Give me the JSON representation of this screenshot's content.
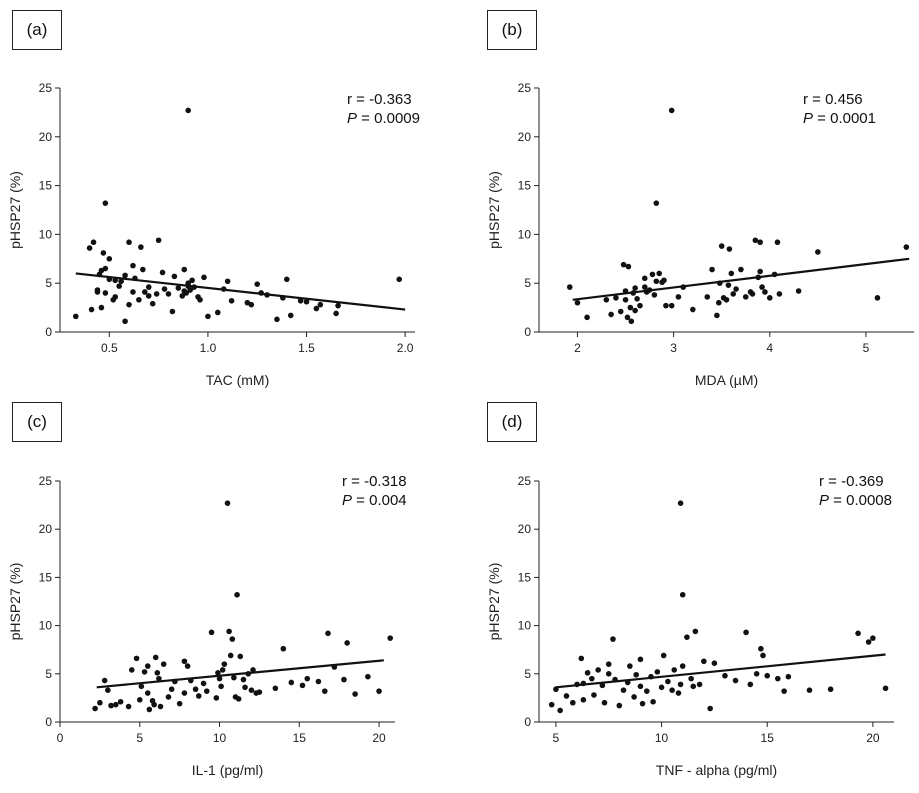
{
  "chart_data": [
    {
      "type": "scatter",
      "panel": "(a)",
      "xlabel": "TAC (mM)",
      "ylabel": "pHSP27 (%)",
      "xlim": [
        0.25,
        2.05
      ],
      "ylim": [
        0,
        25
      ],
      "xticks": [
        0.5,
        1.0,
        1.5,
        2.0
      ],
      "xtick_labels": [
        "0.5",
        "1.0",
        "1.5",
        "2.0"
      ],
      "yticks": [
        0,
        5,
        10,
        15,
        20,
        25
      ],
      "r": "r = -0.363",
      "p_label": "P",
      "p_value": " = 0.0009",
      "fit": {
        "x1": 0.33,
        "y1": 6.0,
        "x2": 2.0,
        "y2": 2.3
      },
      "x": [
        0.33,
        0.4,
        0.41,
        0.42,
        0.44,
        0.45,
        0.46,
        0.46,
        0.47,
        0.48,
        0.48,
        0.5,
        0.5,
        0.52,
        0.53,
        0.55,
        0.56,
        0.58,
        0.6,
        0.62,
        0.62,
        0.63,
        0.65,
        0.66,
        0.67,
        0.68,
        0.7,
        0.72,
        0.74,
        0.75,
        0.77,
        0.78,
        0.8,
        0.82,
        0.83,
        0.85,
        0.87,
        0.88,
        0.88,
        0.89,
        0.9,
        0.9,
        0.91,
        0.92,
        0.93,
        0.95,
        0.96,
        0.98,
        1.0,
        1.05,
        1.08,
        1.1,
        1.12,
        1.2,
        1.22,
        1.25,
        1.27,
        1.3,
        1.35,
        1.38,
        1.4,
        1.42,
        1.47,
        1.5,
        1.55,
        1.57,
        1.65,
        1.66,
        1.97,
        0.9,
        0.48,
        0.6,
        0.7,
        0.58,
        0.44,
        0.53
      ],
      "y": [
        1.6,
        8.6,
        2.3,
        9.2,
        4.1,
        5.9,
        6.3,
        2.5,
        8.1,
        13.2,
        4.0,
        7.5,
        5.4,
        3.3,
        3.6,
        4.7,
        5.2,
        1.1,
        2.8,
        6.8,
        4.1,
        5.5,
        3.3,
        8.7,
        6.4,
        4.1,
        3.7,
        2.9,
        3.9,
        9.4,
        6.1,
        4.4,
        3.9,
        2.1,
        5.7,
        4.5,
        3.7,
        6.4,
        4.2,
        4.0,
        22.7,
        5.0,
        4.3,
        5.3,
        4.6,
        3.6,
        3.3,
        5.6,
        1.6,
        2.0,
        4.4,
        5.2,
        3.2,
        3.0,
        2.8,
        4.9,
        4.0,
        3.8,
        1.3,
        3.5,
        5.4,
        1.7,
        3.2,
        3.1,
        2.4,
        2.8,
        1.9,
        2.7,
        5.4,
        4.7,
        6.5,
        9.2,
        4.6,
        5.8,
        4.3,
        5.3
      ]
    },
    {
      "type": "scatter",
      "panel": "(b)",
      "xlabel": "MDA (µM)",
      "ylabel": "pHSP27 (%)",
      "xlim": [
        1.6,
        5.5
      ],
      "ylim": [
        0,
        25
      ],
      "xticks": [
        2,
        3,
        4,
        5
      ],
      "xtick_labels": [
        "2",
        "3",
        "4",
        "5"
      ],
      "yticks": [
        0,
        5,
        10,
        15,
        20,
        25
      ],
      "r": "r = 0.456",
      "p_label": "P",
      "p_value": " = 0.0001",
      "fit": {
        "x1": 1.95,
        "y1": 3.3,
        "x2": 5.45,
        "y2": 7.5
      },
      "x": [
        1.92,
        2.0,
        2.1,
        2.3,
        2.35,
        2.4,
        2.45,
        2.48,
        2.5,
        2.52,
        2.53,
        2.55,
        2.56,
        2.58,
        2.6,
        2.62,
        2.65,
        2.7,
        2.72,
        2.75,
        2.78,
        2.8,
        2.82,
        2.85,
        2.88,
        2.9,
        2.92,
        2.98,
        3.05,
        3.1,
        3.2,
        3.35,
        3.4,
        3.45,
        3.47,
        3.5,
        3.52,
        3.55,
        3.57,
        3.6,
        3.62,
        3.65,
        3.7,
        3.75,
        3.8,
        3.82,
        3.85,
        3.88,
        3.9,
        3.92,
        3.95,
        4.0,
        4.05,
        4.1,
        4.3,
        4.5,
        5.12,
        5.42,
        2.98,
        2.82,
        2.5,
        2.6,
        2.7,
        3.48,
        3.58,
        3.9,
        4.08
      ],
      "y": [
        4.6,
        3.0,
        1.5,
        3.3,
        1.8,
        3.5,
        2.1,
        6.9,
        4.2,
        1.5,
        6.7,
        2.5,
        1.1,
        4.0,
        2.2,
        3.4,
        2.7,
        4.6,
        4.1,
        4.3,
        5.9,
        3.8,
        13.2,
        6.0,
        5.1,
        5.3,
        2.7,
        22.7,
        3.6,
        4.6,
        2.3,
        3.6,
        6.4,
        1.7,
        3.0,
        8.8,
        3.5,
        3.3,
        4.8,
        6.0,
        3.9,
        4.4,
        6.4,
        3.6,
        4.1,
        3.9,
        9.4,
        5.6,
        9.2,
        4.6,
        4.1,
        3.5,
        5.9,
        3.9,
        4.2,
        8.2,
        3.5,
        8.7,
        2.7,
        5.2,
        3.3,
        4.5,
        5.5,
        5.0,
        8.5,
        6.2,
        9.2
      ]
    },
    {
      "type": "scatter",
      "panel": "(c)",
      "xlabel": "IL-1 (pg/ml)",
      "ylabel": "pHSP27 (%)",
      "xlim": [
        0,
        21
      ],
      "ylim": [
        0,
        25
      ],
      "xticks": [
        0,
        5,
        10,
        15,
        20
      ],
      "xtick_labels": [
        "0",
        "5",
        "10",
        "15",
        "20"
      ],
      "yticks": [
        0,
        5,
        10,
        15,
        20,
        25
      ],
      "r": "r = -0.318",
      "p_label": "P",
      "p_value": " = 0.004",
      "fit": {
        "x1": 2.3,
        "y1": 3.6,
        "x2": 20.3,
        "y2": 6.4
      },
      "x": [
        2.2,
        2.5,
        2.8,
        3.0,
        3.2,
        3.5,
        3.8,
        4.3,
        4.5,
        4.8,
        5.0,
        5.1,
        5.3,
        5.5,
        5.6,
        5.8,
        5.9,
        6.0,
        6.1,
        6.2,
        6.3,
        6.5,
        6.8,
        7.0,
        7.2,
        7.5,
        7.8,
        8.0,
        8.2,
        8.5,
        8.7,
        9.0,
        9.2,
        9.5,
        9.8,
        10.0,
        10.1,
        10.2,
        10.5,
        10.6,
        10.8,
        10.9,
        11.0,
        11.1,
        11.2,
        11.3,
        11.5,
        11.6,
        11.8,
        12.0,
        12.1,
        12.3,
        12.5,
        13.5,
        14.0,
        14.5,
        15.2,
        15.5,
        16.2,
        16.6,
        16.8,
        17.2,
        17.8,
        18.0,
        18.5,
        19.3,
        20.0,
        20.7,
        10.3,
        10.7,
        5.5,
        7.8,
        9.9
      ],
      "y": [
        1.4,
        2.0,
        4.3,
        3.3,
        1.7,
        1.8,
        2.1,
        1.6,
        5.4,
        6.6,
        2.3,
        3.7,
        5.2,
        3.0,
        1.3,
        2.2,
        1.8,
        6.7,
        5.1,
        4.5,
        1.6,
        6.0,
        2.6,
        3.4,
        4.2,
        1.9,
        3.0,
        5.8,
        4.3,
        3.4,
        2.7,
        4.0,
        3.2,
        9.3,
        2.5,
        4.5,
        3.7,
        5.4,
        22.7,
        9.4,
        8.6,
        4.6,
        2.6,
        13.2,
        2.4,
        6.8,
        4.4,
        3.6,
        5.0,
        3.3,
        5.4,
        3.0,
        3.1,
        3.5,
        7.6,
        4.1,
        3.8,
        4.5,
        4.2,
        3.2,
        9.2,
        5.7,
        4.4,
        8.2,
        2.9,
        4.7,
        3.2,
        8.7,
        6.0,
        6.9,
        5.8,
        6.3,
        5.1
      ]
    },
    {
      "type": "scatter",
      "panel": "(d)",
      "xlabel": "TNF - alpha (pg/ml)",
      "ylabel": "pHSP27 (%)",
      "xlim": [
        4.2,
        21
      ],
      "ylim": [
        0,
        25
      ],
      "xticks": [
        5,
        10,
        15,
        20
      ],
      "xtick_labels": [
        "5",
        "10",
        "15",
        "20"
      ],
      "yticks": [
        0,
        5,
        10,
        15,
        20,
        25
      ],
      "r": "r = -0.369",
      "p_label": "P",
      "p_value": " = 0.0008",
      "fit": {
        "x1": 5.0,
        "y1": 3.6,
        "x2": 20.6,
        "y2": 7.0
      },
      "x": [
        4.8,
        5.0,
        5.2,
        5.5,
        5.8,
        6.0,
        6.2,
        6.3,
        6.5,
        6.7,
        6.8,
        7.0,
        7.2,
        7.3,
        7.5,
        7.7,
        7.8,
        8.0,
        8.2,
        8.4,
        8.5,
        8.7,
        8.8,
        9.0,
        9.1,
        9.3,
        9.5,
        9.6,
        9.8,
        10.0,
        10.1,
        10.3,
        10.5,
        10.6,
        10.8,
        10.9,
        11.0,
        11.2,
        11.4,
        11.5,
        11.6,
        11.8,
        12.0,
        12.3,
        12.5,
        13.0,
        13.5,
        14.0,
        14.2,
        14.5,
        14.7,
        14.8,
        15.0,
        15.5,
        15.8,
        16.0,
        17.0,
        18.0,
        19.3,
        19.8,
        20.0,
        20.6,
        10.9,
        11.0,
        6.3,
        7.5,
        9.0
      ],
      "y": [
        1.8,
        3.4,
        1.2,
        2.7,
        2.0,
        3.9,
        6.6,
        2.3,
        5.1,
        4.5,
        2.8,
        5.4,
        3.8,
        2.0,
        6.0,
        8.6,
        4.4,
        1.7,
        3.3,
        4.1,
        5.8,
        2.6,
        4.9,
        3.7,
        1.9,
        3.2,
        4.7,
        2.1,
        5.2,
        3.6,
        6.9,
        4.2,
        3.3,
        5.4,
        3.0,
        22.7,
        13.2,
        8.8,
        4.5,
        3.7,
        9.4,
        3.9,
        6.3,
        1.4,
        6.1,
        4.8,
        4.3,
        9.3,
        3.9,
        5.0,
        7.6,
        6.9,
        4.8,
        4.5,
        3.2,
        4.7,
        3.3,
        3.4,
        9.2,
        8.3,
        8.7,
        3.5,
        3.9,
        5.8,
        4.0,
        5.0,
        6.5
      ]
    }
  ]
}
